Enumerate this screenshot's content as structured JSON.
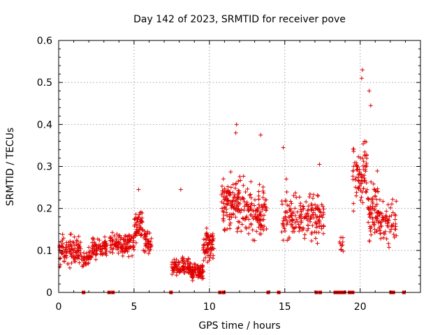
{
  "chart_data": {
    "type": "scatter",
    "title": "Day 142 of 2023, SRMTID for receiver pove",
    "xlabel": "GPS time / hours",
    "ylabel": "SRMTID / TECUs",
    "xlim": [
      0,
      24
    ],
    "ylim": [
      0,
      0.6
    ],
    "x_ticks": [
      "0",
      "5",
      "10",
      "15",
      "20"
    ],
    "y_ticks": [
      "0",
      "0.1",
      "0.2",
      "0.3",
      "0.4",
      "0.5",
      "0.6"
    ],
    "x_tick_values": [
      0,
      5,
      10,
      15,
      20
    ],
    "y_tick_values": [
      0,
      0.1,
      0.2,
      0.3,
      0.4,
      0.5,
      0.6
    ],
    "grid": true,
    "marker": "+",
    "series_color": "#e00000",
    "series": [
      {
        "name": "SRMTID",
        "segments": [
          {
            "x_start": 0.0,
            "x_end": 1.55,
            "mean": 0.098,
            "spread": 0.03,
            "n": 110
          },
          {
            "x_start": 1.55,
            "x_end": 2.2,
            "mean": 0.082,
            "spread": 0.02,
            "n": 35
          },
          {
            "x_start": 2.2,
            "x_end": 3.2,
            "mean": 0.107,
            "spread": 0.022,
            "n": 70
          },
          {
            "x_start": 3.4,
            "x_end": 5.0,
            "mean": 0.115,
            "spread": 0.025,
            "n": 110
          },
          {
            "x_start": 5.0,
            "x_end": 5.6,
            "mean": 0.155,
            "spread": 0.035,
            "n": 55
          },
          {
            "x_start": 5.6,
            "x_end": 6.2,
            "mean": 0.12,
            "spread": 0.03,
            "n": 40
          },
          {
            "x_start": 7.5,
            "x_end": 8.8,
            "mean": 0.06,
            "spread": 0.02,
            "n": 100
          },
          {
            "x_start": 8.8,
            "x_end": 9.6,
            "mean": 0.05,
            "spread": 0.015,
            "n": 80
          },
          {
            "x_start": 9.6,
            "x_end": 10.3,
            "mean": 0.115,
            "spread": 0.035,
            "n": 70
          },
          {
            "x_start": 10.8,
            "x_end": 12.3,
            "mean": 0.21,
            "spread": 0.055,
            "n": 130
          },
          {
            "x_start": 12.3,
            "x_end": 13.8,
            "mean": 0.19,
            "spread": 0.05,
            "n": 110
          },
          {
            "x_start": 14.8,
            "x_end": 17.6,
            "mean": 0.18,
            "spread": 0.05,
            "n": 180
          },
          {
            "x_start": 18.6,
            "x_end": 18.9,
            "mean": 0.12,
            "spread": 0.02,
            "n": 10
          },
          {
            "x_start": 19.5,
            "x_end": 20.5,
            "mean": 0.28,
            "spread": 0.07,
            "n": 80
          },
          {
            "x_start": 20.5,
            "x_end": 21.2,
            "mean": 0.2,
            "spread": 0.07,
            "n": 70
          },
          {
            "x_start": 21.2,
            "x_end": 22.4,
            "mean": 0.17,
            "spread": 0.05,
            "n": 70
          }
        ],
        "notable_points": [
          {
            "x": 20.15,
            "y": 0.53
          },
          {
            "x": 20.1,
            "y": 0.51
          },
          {
            "x": 20.6,
            "y": 0.48
          },
          {
            "x": 20.7,
            "y": 0.445
          },
          {
            "x": 11.8,
            "y": 0.4
          },
          {
            "x": 11.75,
            "y": 0.38
          },
          {
            "x": 13.4,
            "y": 0.375
          },
          {
            "x": 14.9,
            "y": 0.345
          },
          {
            "x": 8.1,
            "y": 0.245
          },
          {
            "x": 5.3,
            "y": 0.245
          },
          {
            "x": 17.3,
            "y": 0.305
          },
          {
            "x": 15.1,
            "y": 0.27
          }
        ]
      }
    ],
    "zero_markers_x": [
      1.65,
      3.35,
      3.6,
      7.45,
      10.7,
      10.95,
      13.9,
      14.6,
      17.1,
      17.35,
      18.35,
      18.5,
      18.6,
      18.7,
      18.85,
      18.95,
      19.3,
      19.5,
      22.05,
      22.2,
      22.9
    ]
  }
}
